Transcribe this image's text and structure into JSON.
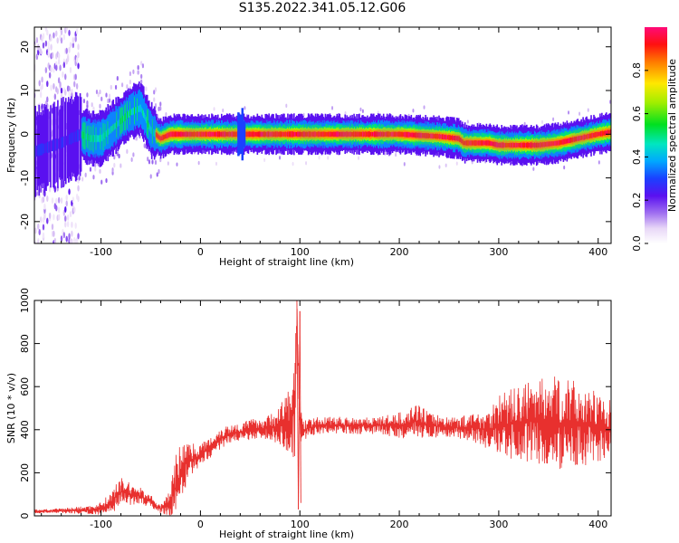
{
  "title": "S135.2022.341.05.12.G06",
  "chart_data": [
    {
      "type": "heatmap",
      "xlabel": "Height of straight line (km)",
      "ylabel": "Frequency (Hz)",
      "xlim": [
        -167,
        413
      ],
      "ylim": [
        -25,
        24.5
      ],
      "x_ticks": [
        -100,
        0,
        100,
        200,
        300,
        400
      ],
      "y_ticks": [
        -20,
        -10,
        0,
        10,
        20
      ],
      "colorbar": {
        "label": "Normalized spectral amplitude",
        "range": [
          0,
          1
        ],
        "ticks": [
          0.0,
          0.2,
          0.4,
          0.6,
          0.8
        ]
      },
      "ridge": {
        "x": [
          -167,
          -140,
          -120,
          -110,
          -100,
          -90,
          -80,
          -70,
          -60,
          -50,
          -40,
          -30,
          -20,
          0,
          30,
          40,
          50,
          100,
          160,
          200,
          240,
          260,
          265,
          290,
          300,
          340,
          360,
          380,
          400,
          413
        ],
        "frequency": [
          -4,
          -2,
          0,
          -1,
          -1,
          1,
          3,
          5,
          6,
          1,
          -1,
          0,
          0,
          0,
          0,
          0,
          0,
          0,
          0,
          0,
          -0.5,
          -1,
          -2,
          -2,
          -2.5,
          -2.5,
          -2,
          -1,
          0,
          0.5
        ]
      }
    },
    {
      "type": "line",
      "xlabel": "Height of straight line (km)",
      "ylabel": "SNR (10 * v/v)",
      "xlim": [
        -167,
        413
      ],
      "ylim": [
        0,
        1000
      ],
      "x_ticks": [
        -100,
        0,
        100,
        200,
        300,
        400
      ],
      "y_ticks": [
        0,
        200,
        400,
        600,
        800,
        1000
      ],
      "color": "#e8302e",
      "series": [
        {
          "x": [
            -167,
            -150,
            -130,
            -110,
            -100,
            -90,
            -80,
            -70,
            -60,
            -50,
            -45,
            -40,
            -35,
            -30,
            -25,
            -20,
            -15,
            -10,
            -5,
            0,
            10,
            20,
            30,
            40,
            50,
            60,
            70,
            80,
            90,
            95,
            97,
            100,
            105,
            110,
            120,
            150,
            180,
            200,
            220,
            230,
            250,
            270,
            290,
            300,
            320,
            340,
            360,
            380,
            400,
            413
          ],
          "values": [
            20,
            22,
            25,
            28,
            35,
            60,
            110,
            100,
            90,
            70,
            45,
            30,
            45,
            75,
            130,
            190,
            240,
            260,
            270,
            285,
            320,
            360,
            380,
            390,
            400,
            405,
            410,
            420,
            420,
            500,
            950,
            420,
            400,
            410,
            420,
            420,
            420,
            420,
            440,
            420,
            410,
            410,
            400,
            420,
            430,
            440,
            430,
            420,
            410,
            415
          ],
          "amplitude": [
            10,
            10,
            15,
            20,
            30,
            50,
            70,
            50,
            40,
            30,
            20,
            20,
            40,
            80,
            150,
            150,
            110,
            90,
            60,
            50,
            50,
            50,
            50,
            40,
            50,
            50,
            60,
            100,
            180,
            300,
            60,
            80,
            50,
            40,
            40,
            40,
            40,
            60,
            80,
            60,
            50,
            60,
            100,
            150,
            170,
            200,
            220,
            200,
            160,
            130
          ]
        }
      ]
    }
  ]
}
